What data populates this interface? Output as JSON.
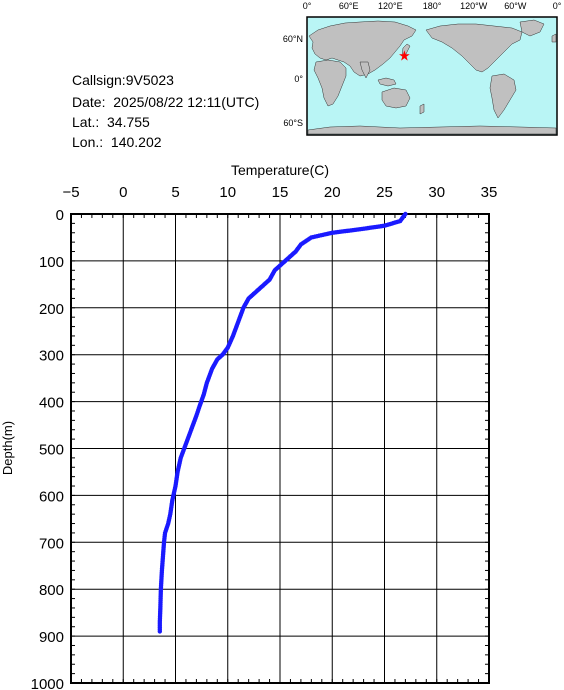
{
  "info": {
    "callsign": "Callsign:9V5023",
    "date": "Date:  2025/08/22 12:11(UTC)",
    "lat": "Lat.:  34.755",
    "lon": "Lon.:  140.202"
  },
  "map": {
    "top_ticks": [
      "0°",
      "60°E",
      "120°E",
      "180°",
      "120°W",
      "60°W",
      "0°"
    ],
    "left_ticks": [
      "60°N",
      "0°",
      "60°S"
    ],
    "ocean_color": "#b9f5f5",
    "land_color": "#c0c0c0",
    "marker_color": "#ff0000",
    "marker_icon": "star-icon",
    "marker_lat": 34.755,
    "marker_lon": 140.202
  },
  "chart_data": {
    "type": "line",
    "xlabel": "Temperature(C)",
    "ylabel": "Depth(m)",
    "xlim": [
      -5,
      35
    ],
    "ylim": [
      0,
      1000
    ],
    "y_inverted": true,
    "x_ticks": [
      -5,
      0,
      5,
      10,
      15,
      20,
      25,
      30,
      35
    ],
    "y_ticks": [
      0,
      100,
      200,
      300,
      400,
      500,
      600,
      700,
      800,
      900,
      1000
    ],
    "grid": true,
    "series_color": "#1a1aff",
    "series": [
      {
        "x": [
          27.0,
          26.5,
          25.0,
          22.5,
          20.0,
          18.0,
          17.0,
          16.5,
          15.5,
          14.5,
          14.0,
          13.0,
          12.0,
          11.5,
          11.0,
          10.5,
          10.0,
          9.5,
          9.0,
          8.5,
          8.0,
          7.7,
          7.3,
          7.0,
          6.5,
          6.0,
          5.5,
          5.2,
          5.0,
          4.7,
          4.5,
          4.3,
          4.0,
          3.9,
          3.8,
          3.7,
          3.6,
          3.55,
          3.5,
          3.5
        ],
        "y": [
          0,
          15,
          25,
          33,
          40,
          50,
          65,
          80,
          100,
          120,
          140,
          160,
          180,
          200,
          230,
          260,
          285,
          300,
          310,
          330,
          360,
          385,
          410,
          430,
          460,
          490,
          520,
          550,
          580,
          610,
          640,
          660,
          680,
          700,
          730,
          760,
          800,
          840,
          870,
          890
        ]
      }
    ]
  }
}
